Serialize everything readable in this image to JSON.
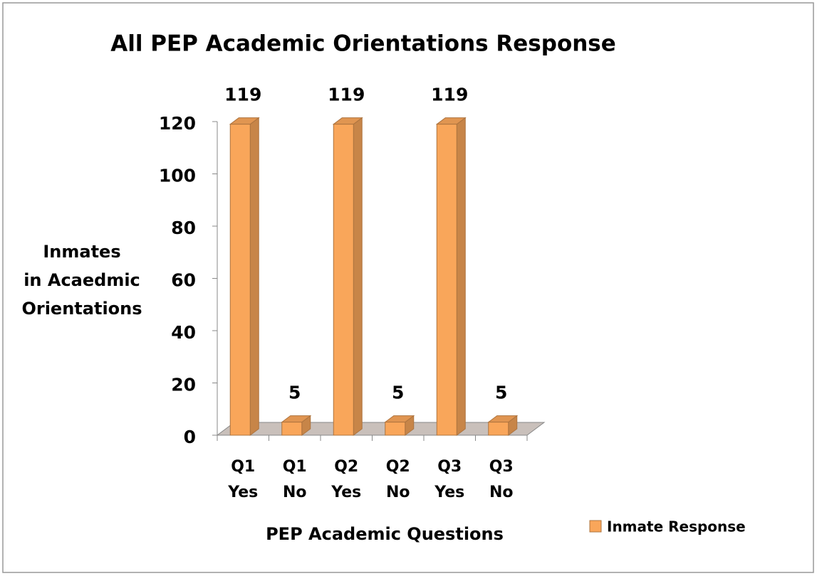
{
  "chart_data": {
    "type": "bar",
    "title": "All PEP Academic Orientations Response",
    "x_label": "PEP Academic Questions",
    "y_label": "Inmates in Acaedmic Orientations",
    "categories": [
      "Q1 Yes",
      "Q1 No",
      "Q2 Yes",
      "Q2 No",
      "Q3 Yes",
      "Q3 No"
    ],
    "series": [
      {
        "name": "Inmate Response",
        "color": "#f9a65a",
        "values": [
          119,
          5,
          119,
          5,
          119,
          5
        ]
      }
    ],
    "ylim": [
      0,
      120
    ],
    "yticks": [
      0,
      20,
      40,
      60,
      80,
      100,
      120
    ],
    "legend": "bottom-right",
    "grid": false
  }
}
